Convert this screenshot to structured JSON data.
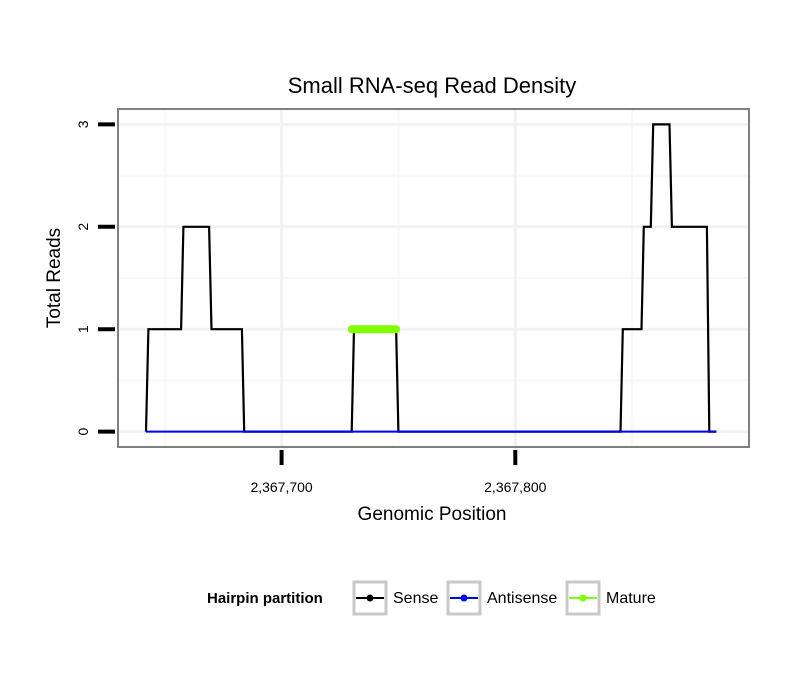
{
  "chart_data": {
    "type": "line",
    "title": "Small RNA-seq Read Density",
    "xlabel": "Genomic Position",
    "ylabel": "Total Reads",
    "xlim": [
      2367630,
      2367900
    ],
    "ylim": [
      -0.15,
      3.15
    ],
    "x_ticks": [
      2367700,
      2367800
    ],
    "x_tick_labels": [
      "2,367,700",
      "2,367,800"
    ],
    "y_ticks": [
      0,
      1,
      2,
      3
    ],
    "y_tick_labels": [
      "0",
      "1",
      "2",
      "3"
    ],
    "grid": true,
    "legend": {
      "title": "Hairpin partition",
      "position": "bottom",
      "entries": [
        "Sense",
        "Antisense",
        "Mature"
      ]
    },
    "series": [
      {
        "name": "Sense",
        "color": "#000000",
        "x": [
          2367642,
          2367643,
          2367657,
          2367658,
          2367669,
          2367670,
          2367683,
          2367684,
          2367730,
          2367731,
          2367749,
          2367750,
          2367845,
          2367846,
          2367854,
          2367855,
          2367858,
          2367859,
          2367866,
          2367867,
          2367882,
          2367883,
          2367886
        ],
        "y": [
          0,
          1,
          1,
          2,
          2,
          1,
          1,
          0,
          0,
          1,
          1,
          0,
          0,
          1,
          1,
          2,
          2,
          3,
          3,
          2,
          2,
          0,
          0
        ]
      },
      {
        "name": "Antisense",
        "color": "#0000ff",
        "x": [
          2367642,
          2367886
        ],
        "y": [
          0,
          0
        ]
      },
      {
        "name": "Mature",
        "color": "#7fff00",
        "x": [
          2367730,
          2367749
        ],
        "y": [
          1,
          1
        ]
      }
    ]
  }
}
